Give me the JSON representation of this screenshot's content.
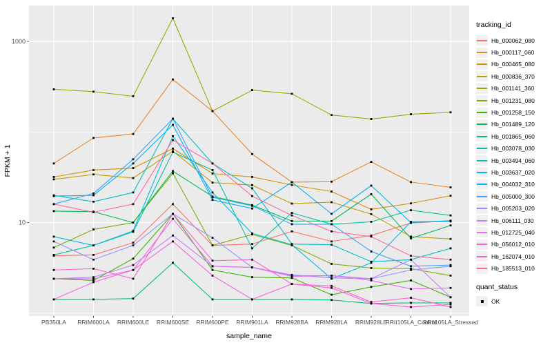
{
  "colors": {
    "panel_bg": "#EBEBEB",
    "grid": "#FFFFFF",
    "tick_label": "#4D4D4D",
    "axis_title": "#000000",
    "point": "#000000",
    "legend_key_bg": "#F0F0F0"
  },
  "legend": {
    "title": "tracking_id",
    "position": "right"
  },
  "quant_legend": {
    "title": "quant_status",
    "items": [
      "OK"
    ],
    "marker": "filled-black-square"
  },
  "chart_data": {
    "type": "line",
    "title": "",
    "xlabel": "sample_name",
    "ylabel": "FPKM + 1",
    "y_scale": "log10",
    "ylim": [
      1,
      2500
    ],
    "y_major_ticks": [
      {
        "label": "1000",
        "value": 1000
      },
      {
        "label": "10",
        "value": 10
      }
    ],
    "y_minor_gridlines": [
      100,
      1
    ],
    "grid": "on",
    "point_shape": "filled-black-square",
    "legend_position": "right",
    "categories": [
      "PB350LA",
      "RRIM600LA",
      "RRIM600LE",
      "RRIM600SE",
      "RRIM600PE",
      "RRIM901LA",
      "RRIM928BA",
      "RRIM928LA",
      "RRIM928LE",
      "RRII105LA_Control",
      "RRII105LA_Stressed"
    ],
    "series": [
      {
        "name": "Hb_000062_080",
        "color": "#F8766D",
        "values": [
          4.3,
          4.4,
          6.0,
          16,
          5.6,
          5.8,
          8.0,
          6.2,
          7.2,
          9.9,
          10.4
        ]
      },
      {
        "name": "Hb_000117_060",
        "color": "#E88526",
        "values": [
          45,
          86,
          95,
          380,
          170,
          57,
          28,
          28.3,
          46.8,
          28,
          24.5
        ]
      },
      {
        "name": "Hb_000465_080",
        "color": "#D89000",
        "values": [
          31.9,
          38,
          40,
          65.6,
          34.8,
          31.9,
          26,
          22,
          14,
          16.3,
          19.8
        ]
      },
      {
        "name": "Hb_000836_370",
        "color": "#C09B00",
        "values": [
          30,
          34,
          31,
          61.5,
          27.6,
          25.9,
          16.2,
          16.8,
          12.4,
          7.0,
          6.6
        ]
      },
      {
        "name": "Hb_001141_360",
        "color": "#A3A500",
        "values": [
          296,
          279,
          248,
          1800,
          170,
          290,
          264,
          154,
          139,
          157,
          165
        ]
      },
      {
        "name": "Hb_001231_080",
        "color": "#7CAE00",
        "values": [
          5.3,
          8.4,
          10,
          35,
          5.6,
          7.4,
          5.6,
          3.5,
          3.15,
          3.1,
          2.6
        ]
      },
      {
        "name": "Hb_001258_150",
        "color": "#39B600",
        "values": [
          2.4,
          2.3,
          4.0,
          12.5,
          3.0,
          2.5,
          2.45,
          1.6,
          1.95,
          2.3,
          1.5
        ]
      },
      {
        "name": "Hb_001489_120",
        "color": "#00BB4E",
        "values": [
          13.4,
          13.2,
          10,
          37,
          19.4,
          15.6,
          10.4,
          10.4,
          20.6,
          6.7,
          9.3
        ]
      },
      {
        "name": "Hb_001865_060",
        "color": "#00BF7D",
        "values": [
          1.42,
          1.42,
          1.45,
          3.6,
          1.42,
          1.42,
          1.42,
          1.4,
          1.28,
          1.3,
          1.3
        ]
      },
      {
        "name": "Hb_003078_030",
        "color": "#00C1A3",
        "values": [
          4.4,
          5.6,
          7.9,
          60,
          38,
          5.2,
          12.8,
          9.6,
          10.2,
          13.7,
          12.0
        ]
      },
      {
        "name": "Hb_003494_060",
        "color": "#00BFC4",
        "values": [
          20,
          17,
          21.5,
          140,
          45,
          23.9,
          5.8,
          5.7,
          3.7,
          3.9,
          5.2
        ]
      },
      {
        "name": "Hb_003637_020",
        "color": "#00BAE0",
        "values": [
          7.0,
          5.6,
          8.1,
          90,
          21.5,
          7.6,
          5.7,
          2.4,
          3.6,
          10.2,
          10.3
        ]
      },
      {
        "name": "Hb_004032_310",
        "color": "#00B0F6",
        "values": [
          19.6,
          20,
          45,
          120,
          17.8,
          14.3,
          28,
          12.5,
          25.6,
          10.0,
          10.5
        ]
      },
      {
        "name": "Hb_005000_300",
        "color": "#35A2FF",
        "values": [
          16,
          21,
          50,
          140,
          19,
          15.3,
          9.6,
          9.6,
          4.8,
          3.3,
          3.4
        ]
      },
      {
        "name": "Hb_005203_020",
        "color": "#9590FF",
        "values": [
          6.2,
          3.9,
          5.6,
          12.5,
          6.8,
          3.2,
          2.65,
          2.45,
          2.4,
          3.0,
          3.3
        ]
      },
      {
        "name": "Hb_006111_030",
        "color": "#C77CFF",
        "values": [
          2.4,
          2.5,
          3.4,
          7.2,
          3.3,
          3.2,
          2.6,
          2.6,
          2.4,
          3.9,
          1.5
        ]
      },
      {
        "name": "Hb_012725_040",
        "color": "#E76BF3",
        "values": [
          2.4,
          2.4,
          3.0,
          11,
          3.3,
          3.2,
          2.55,
          2.6,
          2.3,
          1.85,
          1.9
        ]
      },
      {
        "name": "Hb_056012_010",
        "color": "#FA62DB",
        "values": [
          1.42,
          2.2,
          3.0,
          6.2,
          2.6,
          1.42,
          2.1,
          1.9,
          1.28,
          1.17,
          1.25
        ]
      },
      {
        "name": "Hb_162074_010",
        "color": "#FF61CC",
        "values": [
          3.0,
          3.1,
          2.4,
          12.5,
          3.8,
          3.9,
          2.1,
          2.0,
          1.33,
          1.48,
          1.17
        ]
      },
      {
        "name": "Hb_185513_010",
        "color": "#FF67A4",
        "values": [
          16,
          13,
          16,
          81.5,
          45,
          19.6,
          12.0,
          8.0,
          7.0,
          4.3,
          3.9
        ]
      }
    ]
  }
}
